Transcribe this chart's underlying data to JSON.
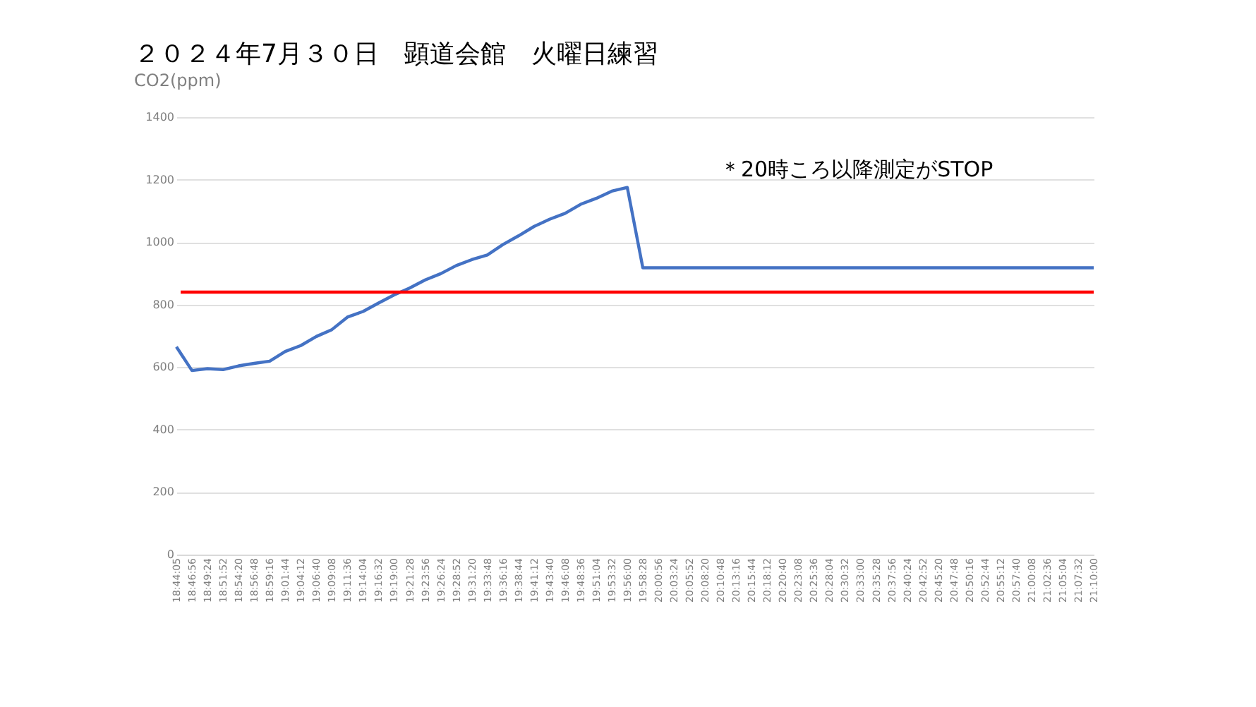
{
  "chart_data": {
    "type": "line",
    "title": "２０２４年7月３０日　顕道会館　火曜日練習",
    "subtitle": "CO2(ppm)",
    "categories": [
      "18:44:05",
      "18:46:56",
      "18:49:24",
      "18:51:52",
      "18:54:20",
      "18:56:48",
      "18:59:16",
      "19:01:44",
      "19:04:12",
      "19:06:40",
      "19:09:08",
      "19:11:36",
      "19:14:04",
      "19:16:32",
      "19:19:00",
      "19:21:28",
      "19:23:56",
      "19:26:24",
      "19:28:52",
      "19:31:20",
      "19:33:48",
      "19:36:16",
      "19:38:44",
      "19:41:12",
      "19:43:40",
      "19:46:08",
      "19:48:36",
      "19:51:04",
      "19:53:32",
      "19:56:00",
      "19:58:28",
      "20:00:56",
      "20:03:24",
      "20:05:52",
      "20:08:20",
      "20:10:48",
      "20:13:16",
      "20:15:44",
      "20:18:12",
      "20:20:40",
      "20:23:08",
      "20:25:36",
      "20:28:04",
      "20:30:32",
      "20:33:00",
      "20:35:28",
      "20:37:56",
      "20:40:24",
      "20:42:52",
      "20:45:20",
      "20:47:48",
      "20:50:16",
      "20:52:44",
      "20:55:12",
      "20:57:40",
      "21:00:08",
      "21:02:36",
      "21:05:04",
      "21:07:32",
      "21:10:00"
    ],
    "series": [
      {
        "color": "#4472c4",
        "values": [
          665,
          589,
          595,
          592,
          604,
          612,
          619,
          650,
          669,
          698,
          720,
          760,
          778,
          805,
          831,
          853,
          879,
          899,
          925,
          944,
          959,
          992,
          1020,
          1050,
          1073,
          1092,
          1121,
          1140,
          1163,
          1175,
          918,
          918,
          918,
          918,
          918,
          918,
          918,
          918,
          918,
          918,
          918,
          918,
          918,
          918,
          918,
          918,
          918,
          918,
          918,
          918,
          918,
          918,
          918,
          918,
          918,
          918,
          918,
          918,
          918,
          918
        ]
      }
    ],
    "ylim": [
      0,
      1400
    ],
    "yticks": [
      0,
      200,
      400,
      600,
      800,
      1000,
      1200,
      1400
    ],
    "grid": "y",
    "marker": "none",
    "line_style": "solid",
    "ref_lines": [
      {
        "axis": "y",
        "value": 840,
        "color": "#ff0000"
      }
    ],
    "annotations": [
      "＊20時ころ以降測定がSTOP"
    ]
  }
}
